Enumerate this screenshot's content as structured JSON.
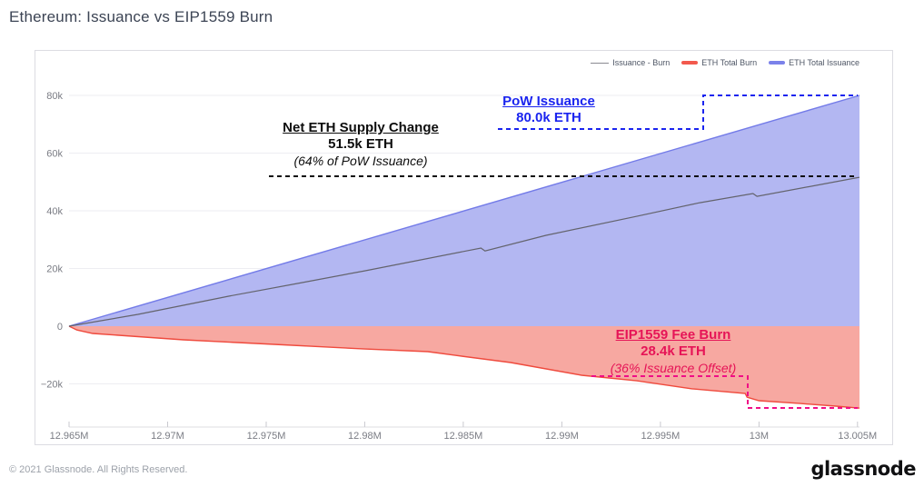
{
  "page": {
    "title": "Ethereum: Issuance vs EIP1559 Burn",
    "footer_left": "© 2021 Glassnode. All Rights Reserved.",
    "brand": "glassnode"
  },
  "legend": {
    "items": [
      {
        "label": "Issuance - Burn",
        "color": "#8a8a92",
        "type": "line"
      },
      {
        "label": "ETH Total Burn",
        "color": "#f2594d",
        "type": "bar"
      },
      {
        "label": "ETH Total Issuance",
        "color": "#7b82ea",
        "type": "bar"
      }
    ]
  },
  "annotations": {
    "net": {
      "title": "Net ETH Supply Change",
      "value": "51.5k ETH",
      "note": "(64% of PoW Issuance)",
      "color": "#0d0d0d"
    },
    "pow": {
      "title": "PoW Issuance",
      "value": "80.0k ETH",
      "color": "#1a24ef"
    },
    "burn": {
      "title": "EIP1559 Fee Burn",
      "value": "28.4k ETH",
      "note": "(36% Issuance Offset)",
      "color": "#e61457"
    }
  },
  "chart_data": {
    "type": "area",
    "title": "Ethereum: Issuance vs EIP1559 Burn",
    "x_unit": "M",
    "xlim": [
      12.965,
      13.0051
    ],
    "ylim_k": [
      -34,
      80
    ],
    "grid": true,
    "legend_position": "top-right",
    "xticks": {
      "labels": [
        "12.965M",
        "12.97M",
        "12.975M",
        "12.98M",
        "12.985M",
        "12.99M",
        "12.995M",
        "13M",
        "13.005M"
      ],
      "values": [
        12.965,
        12.97,
        12.975,
        12.98,
        12.985,
        12.99,
        12.995,
        13.0,
        13.005
      ]
    },
    "yticks": {
      "labels": [
        "80k",
        "60k",
        "40k",
        "20k",
        "0",
        "−20k"
      ],
      "values": [
        80,
        60,
        40,
        20,
        0,
        -20
      ]
    },
    "series": [
      {
        "name": "ETH Total Issuance",
        "type": "area",
        "stroke": "#737be8",
        "fill": "#b3b7f2",
        "points": [
          [
            12.965,
            0
          ],
          [
            13.0051,
            80.0
          ]
        ]
      },
      {
        "name": "ETH Total Burn",
        "type": "area",
        "stroke": "#ef4a3d",
        "fill": "#f7a8a1",
        "points": [
          [
            12.965,
            0
          ],
          [
            12.9654,
            -1.3
          ],
          [
            12.9662,
            -2.5
          ],
          [
            12.9708,
            -4.7
          ],
          [
            12.9754,
            -6.3
          ],
          [
            12.98,
            -7.9
          ],
          [
            12.9832,
            -8.8
          ],
          [
            12.9846,
            -10.1
          ],
          [
            12.9874,
            -12.6
          ],
          [
            12.991,
            -17.0
          ],
          [
            12.9938,
            -18.9
          ],
          [
            12.9966,
            -21.7
          ],
          [
            12.9993,
            -23.3
          ],
          [
            12.9994,
            -24.6
          ],
          [
            13.0,
            -25.8
          ],
          [
            13.0021,
            -26.8
          ],
          [
            13.0039,
            -27.7
          ],
          [
            13.0051,
            -28.4
          ]
        ]
      },
      {
        "name": "Issuance - Burn",
        "type": "line",
        "stroke": "#63636c",
        "points": [
          [
            12.965,
            0
          ],
          [
            12.9685,
            4.1
          ],
          [
            12.9731,
            10.4
          ],
          [
            12.9768,
            15.1
          ],
          [
            12.98,
            19.2
          ],
          [
            12.9859,
            27.1
          ],
          [
            12.9861,
            26.1
          ],
          [
            12.9892,
            31.5
          ],
          [
            12.9938,
            38.1
          ],
          [
            12.997,
            42.8
          ],
          [
            12.9997,
            46.0
          ],
          [
            12.9999,
            45.0
          ],
          [
            13.005,
            51.5
          ],
          [
            13.0051,
            51.6
          ]
        ]
      }
    ],
    "annotations_values": {
      "pow_issuance_k": 80.0,
      "net_supply_change_k": 51.5,
      "net_supply_pct_of_issuance": 64,
      "fee_burn_k": 28.4,
      "burn_issuance_offset_pct": 36
    }
  }
}
